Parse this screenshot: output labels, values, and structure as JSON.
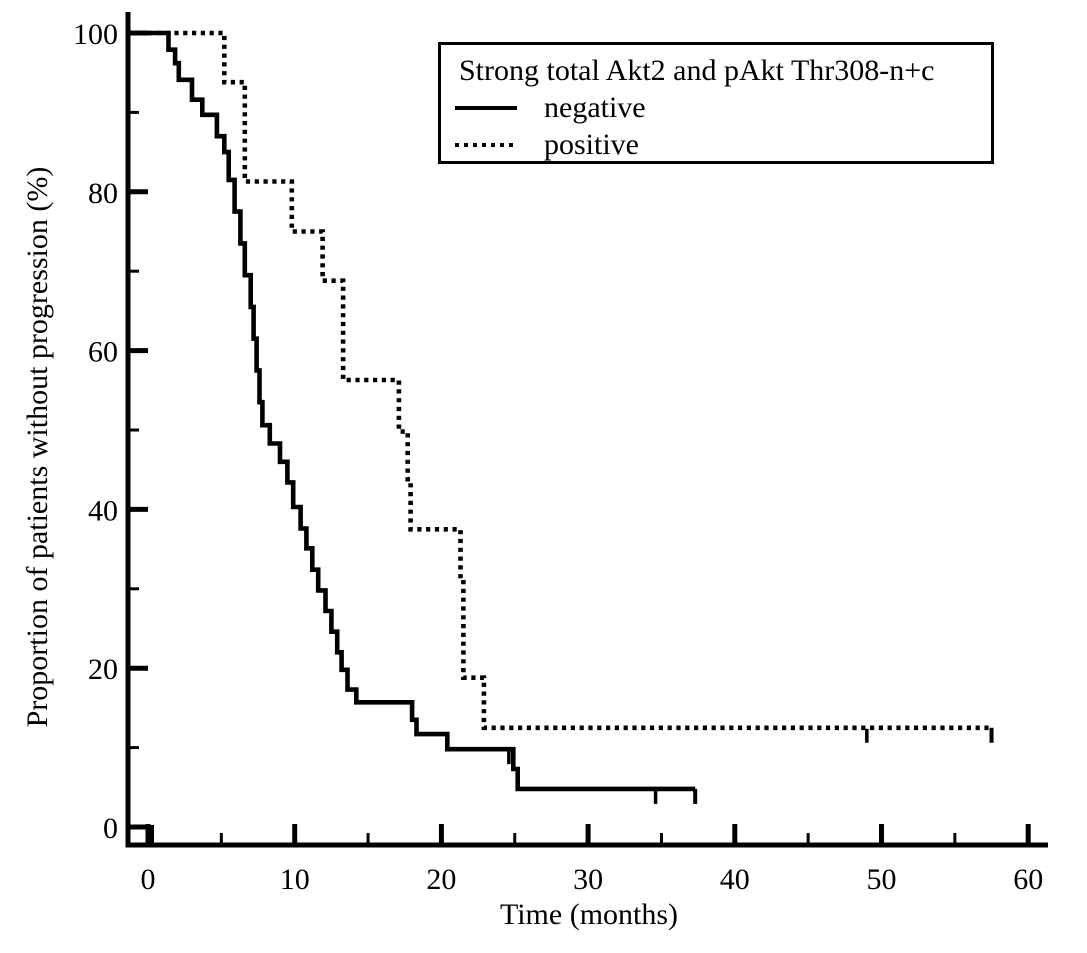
{
  "colors": {
    "foreground": "#000000",
    "background": "#ffffff"
  },
  "chart_data": {
    "type": "line",
    "chart_style": "kaplan-meier-step",
    "title": "",
    "xlabel": "Time (months)",
    "ylabel": "Proportion of patients without progression (%)",
    "xlim": [
      0,
      60
    ],
    "ylim": [
      0,
      100
    ],
    "x_major_ticks": [
      0,
      10,
      20,
      30,
      40,
      50,
      60
    ],
    "x_minor_ticks": [
      5,
      15,
      25,
      35,
      45,
      55
    ],
    "y_major_ticks": [
      0,
      20,
      40,
      60,
      80,
      100
    ],
    "y_minor_ticks": [
      10,
      30,
      50,
      70,
      90
    ],
    "grid": false,
    "legend": {
      "title": "Strong total Akt2 and pAkt Thr308-n+c",
      "position": "top-center",
      "entries": [
        {
          "label": "negative",
          "line_style": "solid"
        },
        {
          "label": "positive",
          "line_style": "dotted"
        }
      ]
    },
    "units": {
      "x": "months",
      "y": "percent"
    },
    "series": [
      {
        "name": "negative",
        "line_style": "solid",
        "start": [
          0,
          100
        ],
        "starts_at_axis": true,
        "steps": [
          [
            1.4,
            97.9
          ],
          [
            1.85,
            96.2
          ],
          [
            2.1,
            94.1
          ],
          [
            3.0,
            91.6
          ],
          [
            3.7,
            89.7
          ],
          [
            4.7,
            87.0
          ],
          [
            5.2,
            85.0
          ],
          [
            5.5,
            81.5
          ],
          [
            5.9,
            77.5
          ],
          [
            6.3,
            73.5
          ],
          [
            6.6,
            69.5
          ],
          [
            7.0,
            65.5
          ],
          [
            7.2,
            61.5
          ],
          [
            7.4,
            57.5
          ],
          [
            7.6,
            53.5
          ],
          [
            7.8,
            50.6
          ],
          [
            8.3,
            48.3
          ],
          [
            9.0,
            46.0
          ],
          [
            9.5,
            43.4
          ],
          [
            9.9,
            40.3
          ],
          [
            10.4,
            37.6
          ],
          [
            10.8,
            35.1
          ],
          [
            11.2,
            32.4
          ],
          [
            11.6,
            29.8
          ],
          [
            12.1,
            27.2
          ],
          [
            12.5,
            24.6
          ],
          [
            12.9,
            22.0
          ],
          [
            13.2,
            19.8
          ],
          [
            13.6,
            17.3
          ],
          [
            14.2,
            15.7
          ],
          [
            18.0,
            13.5
          ],
          [
            18.3,
            11.7
          ],
          [
            20.4,
            9.8
          ],
          [
            24.9,
            7.3
          ],
          [
            25.2,
            4.8
          ]
        ],
        "end_time": 37.3,
        "censor_times": [
          24.6,
          34.6
        ],
        "terminal_tick": true
      },
      {
        "name": "positive",
        "line_style": "dotted",
        "start": [
          0,
          100
        ],
        "starts_at_axis": false,
        "steps": [
          [
            5.2,
            93.8
          ],
          [
            6.6,
            81.3
          ],
          [
            9.8,
            75.0
          ],
          [
            11.9,
            68.8
          ],
          [
            13.3,
            56.3
          ],
          [
            17.1,
            49.8
          ],
          [
            17.7,
            43.8
          ],
          [
            17.9,
            37.5
          ],
          [
            21.3,
            31.3
          ],
          [
            21.5,
            18.8
          ],
          [
            22.9,
            12.5
          ]
        ],
        "end_time": 57.5,
        "censor_times": [
          49.0
        ],
        "terminal_tick": true
      }
    ]
  }
}
